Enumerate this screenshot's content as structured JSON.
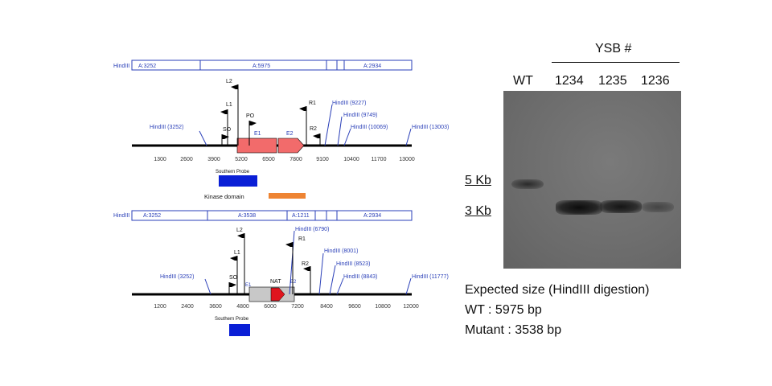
{
  "map1": {
    "bar": [
      "HindIII",
      "A:3252",
      "A:5975",
      "A:2934"
    ],
    "scale": [
      "1300",
      "2600",
      "3900",
      "5200",
      "6500",
      "7800",
      "9100",
      "10400",
      "11700",
      "13000"
    ],
    "sites": [
      "HindIII (3252)",
      "HindIII (9227)",
      "HindIII (9749)",
      "HindIII (10069)",
      "HindIII (13003)"
    ],
    "primers": [
      "L2",
      "L1",
      "SO",
      "PO",
      "R1",
      "R2"
    ],
    "exons": [
      "E1",
      "E2"
    ],
    "probe": "Southern Probe",
    "domain": "Kinase domain"
  },
  "map2": {
    "bar": [
      "HindIII",
      "A:3252",
      "A:3538",
      "A:1211",
      "A:2934"
    ],
    "scale": [
      "1200",
      "2400",
      "3600",
      "4800",
      "6000",
      "7200",
      "8400",
      "9600",
      "10800",
      "12000"
    ],
    "sites": [
      "HindIII (3252)",
      "HindIII (6790)",
      "HindIII (8001)",
      "HindIII (8523)",
      "HindIII (8843)",
      "HindIII (11777)"
    ],
    "primers": [
      "L2",
      "L1",
      "SO",
      "R1",
      "R2"
    ],
    "exons": [
      "E1",
      "E2"
    ],
    "nat": "NAT",
    "probe": "Southern Probe"
  },
  "gel": {
    "group": "YSB #",
    "lanes": [
      "WT",
      "1234",
      "1235",
      "1236"
    ],
    "markers": [
      "5 Kb",
      "3 Kb"
    ]
  },
  "caption": {
    "title": "Expected size (HindIII digestion)",
    "wt": "WT : 5975 bp",
    "mutant": "Mutant : 3538 bp"
  },
  "colors": {
    "map_text": "#2a3fb8",
    "exon": "#f26b6b",
    "probe": "#0a1fd6",
    "kinase": "#ee8433",
    "nat": "#e0141e",
    "cassette": "#c8c8c8"
  }
}
